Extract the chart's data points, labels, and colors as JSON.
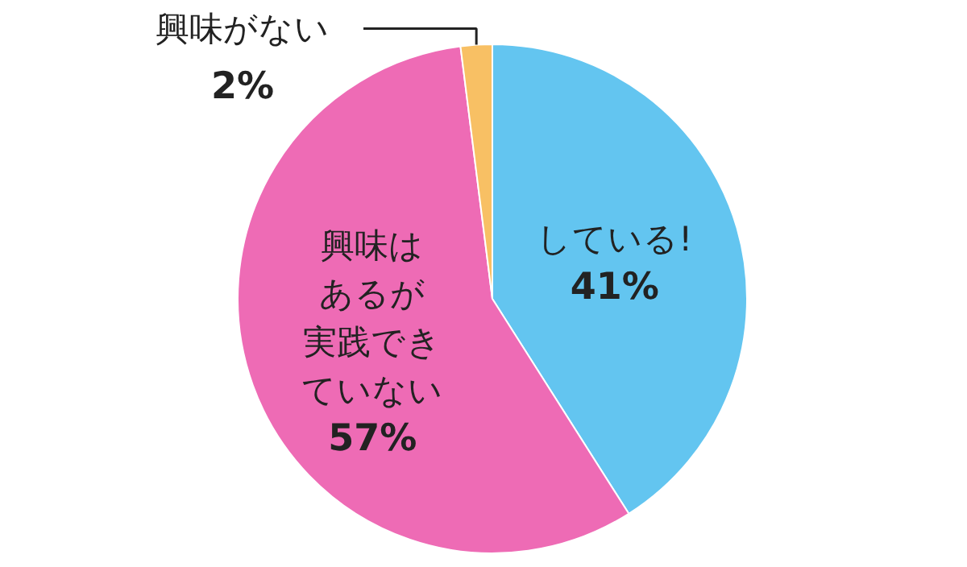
{
  "chart_data": {
    "type": "pie",
    "categories": [
      "している!",
      "興味はあるが実践できていない",
      "興味がない"
    ],
    "values": [
      41,
      57,
      2
    ],
    "colors": [
      "#63c5f0",
      "#ee6bb5",
      "#f8c064"
    ],
    "value_labels": [
      "41%",
      "57%",
      "2%"
    ]
  }
}
